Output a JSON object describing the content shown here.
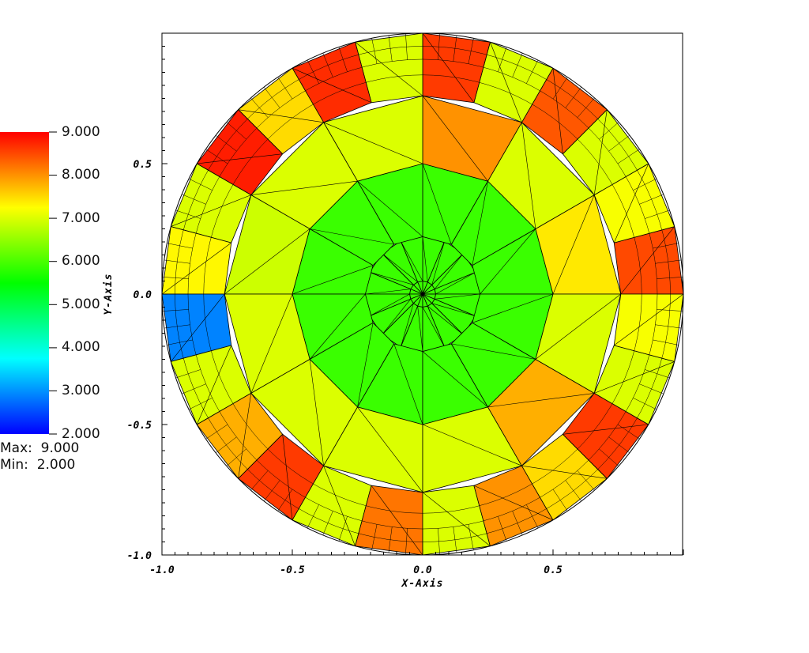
{
  "chart_data": {
    "type": "heatmap",
    "title": "",
    "xlabel": "X-Axis",
    "ylabel": "Y-Axis",
    "xlim": [
      -1.0,
      1.0
    ],
    "ylim": [
      -1.0,
      1.0
    ],
    "xticks": [
      -1.0,
      -0.5,
      0.0,
      0.5
    ],
    "yticks": [
      -1.0,
      -0.5,
      0.0,
      0.5
    ],
    "xtick_labels": [
      "-1.0",
      "-0.5",
      "0.0",
      "0.5"
    ],
    "ytick_labels": [
      "-1.0",
      "-0.5",
      "0.0",
      "0.5"
    ],
    "domain_shape": "unit disk, triangulated mesh refined toward boundary",
    "colorbar": {
      "min": 2.0,
      "max": 9.0,
      "labels": [
        "9.000",
        "8.000",
        "7.000",
        "6.000",
        "5.000",
        "4.000",
        "3.000",
        "2.000"
      ],
      "colormap": [
        "#0000ff",
        "#00ffff",
        "#00ff00",
        "#ffff00",
        "#ff0000"
      ],
      "max_text": "Max:  9.000",
      "min_text": "Min:  2.000"
    },
    "rings": [
      {
        "r_inner": 0.0,
        "r_outer": 0.05,
        "sectors": 16,
        "values": [
          5.9
        ]
      },
      {
        "r_inner": 0.05,
        "r_outer": 0.22,
        "sectors": 16,
        "values": [
          5.9
        ]
      },
      {
        "r_inner": 0.22,
        "r_outer": 0.5,
        "sectors": 12,
        "values": [
          5.9
        ]
      },
      {
        "r_inner": 0.5,
        "r_outer": 0.76,
        "sectors": 12,
        "values": [
          7.4,
          7.0,
          8.0,
          7.0,
          7.0,
          6.9,
          7.0,
          7.0,
          7.0,
          7.0,
          7.8,
          7.0
        ]
      },
      {
        "r_inner": 0.76,
        "r_outer": 1.0,
        "sectors": 24,
        "values": [
          8.5,
          7.2,
          7.0,
          8.4,
          7.0,
          8.6,
          7.0,
          8.7,
          7.5,
          8.8,
          7.0,
          7.3,
          2.9,
          7.0,
          7.8,
          8.6,
          7.0,
          8.2,
          7.0,
          8.0,
          7.5,
          8.6,
          7.0,
          7.2
        ]
      }
    ]
  }
}
